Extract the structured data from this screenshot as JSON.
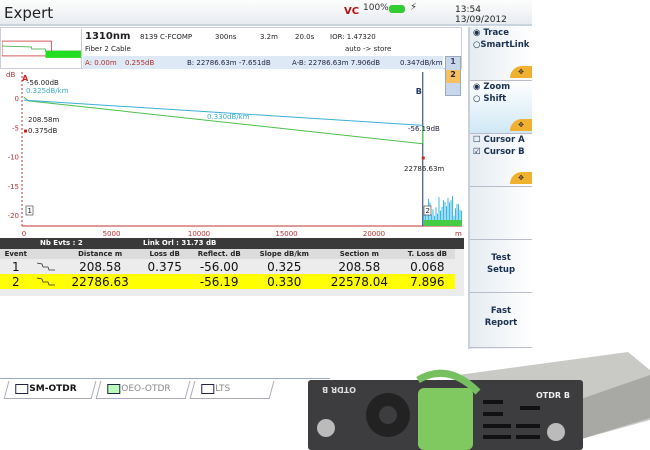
{
  "header": {
    "title": "Expert",
    "logo": "VC",
    "battery": "100%",
    "time": "13:54",
    "date": "13/09/2012"
  },
  "info": {
    "wavelength": "1310nm",
    "module": "8139 C-FCOMP",
    "pulse": "300ns",
    "resolution": "3.2m",
    "duration": "20.0s",
    "ior": "IOR: 1.47320",
    "fiber": "Fiber 2 Cable",
    "mode": "auto -> store",
    "cursor_a": "A: 0.00m",
    "cursor_a_db": "0.255dB",
    "cursor_b": "B: 22786.63m  -7.651dB",
    "ab": "A-B: 22786.63m  7.906dB",
    "ab_slope": "0.347dB/km",
    "trace_selector": [
      "1",
      "2"
    ],
    "selected_trace": "2"
  },
  "chart_data": {
    "type": "line",
    "ylabel": "dB",
    "xunit": "m",
    "xlim": [
      0,
      25000
    ],
    "ylim": [
      -21,
      3
    ],
    "xticks": [
      0,
      5000,
      10000,
      15000,
      20000
    ],
    "yticks": [
      0,
      -5,
      -10,
      -15,
      -20
    ],
    "series": [
      {
        "color": "#4cc04c",
        "x": [
          0,
          200,
          208.58,
          22786.63
        ],
        "y": [
          0.3,
          -0.2,
          -0.3,
          -7.65
        ]
      },
      {
        "color": "#3ab0d8",
        "x": [
          0,
          22786.63
        ],
        "y": [
          -0.2,
          -4.5
        ]
      }
    ],
    "annotations": {
      "a_label": "A",
      "b_label": "B",
      "refl1": "-56.00dB",
      "slope1": "0.325dB/km",
      "ev1_dist": "208.58m",
      "ev1_loss": "0.375dB",
      "slope2": "0.330dB/km",
      "refl2": "-56.19dB",
      "ev2_dist": "22786.63m",
      "marker1": "1",
      "marker2": "2"
    },
    "colors": {
      "axis": "#c03030"
    }
  },
  "table": {
    "nb_evts": "Nb Evts : 2",
    "link_orl": "Link Orl :  31.73 dB",
    "columns": [
      "Event",
      "",
      "Distance  m",
      "Loss dB",
      "Reflect. dB",
      "Slope  dB/km",
      "Section m",
      "T. Loss dB"
    ],
    "rows": [
      [
        "1",
        "",
        "208.58",
        "0.375",
        "-56.00",
        "0.325",
        "208.58",
        "0.068"
      ],
      [
        "2",
        "",
        "22786.63",
        "",
        "-56.19",
        "0.330",
        "22578.04",
        "7.896"
      ]
    ],
    "selected_row": 1
  },
  "sidebar": {
    "trace": "Trace",
    "smartlink": "SmartLink",
    "zoom": "Zoom",
    "shift": "Shift",
    "cursor_a": "Cursor A",
    "cursor_b": "Cursor B",
    "cursor_a_checked": false,
    "cursor_b_checked": true,
    "test_setup_1": "Test",
    "test_setup_2": "Setup",
    "fast_report_1": "Fast",
    "fast_report_2": "Report"
  },
  "tabs": [
    {
      "label": "SM-OTDR",
      "active": true
    },
    {
      "label": "OEO-OTDR",
      "active": false
    },
    {
      "label": "LTS",
      "active": false
    }
  ],
  "device": {
    "label_left": "OTDR  B",
    "label_right": "OTDR  B"
  }
}
